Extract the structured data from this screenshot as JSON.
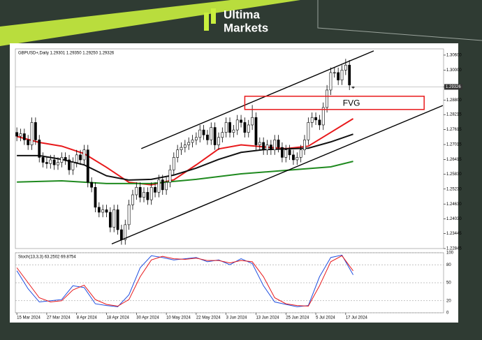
{
  "header": {
    "brand_line1": "Ultima",
    "brand_line2": "Markets"
  },
  "chart_data": {
    "type": "candlestick",
    "title": "GBPUSD+,Daily  1.29301 1.29350 1.29250 1.29326",
    "categories": [
      "15 Mar 2024",
      null,
      null,
      null,
      null,
      null,
      null,
      null,
      "27 Mar 2024",
      null,
      null,
      null,
      null,
      null,
      null,
      null,
      "8 Apr 2024",
      null,
      null,
      null,
      null,
      null,
      null,
      null,
      "18 Apr 2024",
      null,
      null,
      null,
      null,
      null,
      null,
      null,
      "30 Apr 2024",
      null,
      null,
      null,
      null,
      null,
      null,
      null,
      "10 May 2024",
      null,
      null,
      null,
      null,
      null,
      null,
      null,
      "22 May 2024",
      null,
      null,
      null,
      null,
      null,
      null,
      null,
      "3 Jun 2024",
      null,
      null,
      null,
      null,
      null,
      null,
      null,
      "13 Jun 2024",
      null,
      null,
      null,
      null,
      null,
      null,
      null,
      "25 Jun 2024",
      null,
      null,
      null,
      null,
      null,
      null,
      null,
      "5 Jul 2024",
      null,
      null,
      null,
      null,
      null,
      null,
      null,
      "17 Jul 2024",
      null,
      null
    ],
    "xlim": [
      -0.4,
      114.2
    ],
    "ylim": [
      1.22845,
      1.3085
    ],
    "yticks": [
      {
        "value": 1.306,
        "label": "1.30600"
      },
      {
        "value": 1.3,
        "label": "1.30000"
      },
      {
        "value": 1.29326,
        "label": "1.29326"
      },
      {
        "value": 1.288,
        "label": "1.28800"
      },
      {
        "value": 1.28215,
        "label": "1.28215"
      },
      {
        "value": 1.27615,
        "label": "1.27615"
      },
      {
        "value": 1.27015,
        "label": "1.27015"
      },
      {
        "value": 1.26415,
        "label": "1.26415"
      },
      {
        "value": 1.2583,
        "label": "1.25830"
      },
      {
        "value": 1.2523,
        "label": "1.25230"
      },
      {
        "value": 1.2463,
        "label": "1.24630"
      },
      {
        "value": 1.2403,
        "label": "1.24030"
      },
      {
        "value": 1.23445,
        "label": "1.23445"
      },
      {
        "value": 1.22845,
        "label": "1.22845"
      }
    ],
    "candles": {
      "up_color": "#ffffff",
      "down_color": "#000000",
      "open": [
        1.275,
        1.2735,
        1.2745,
        1.272,
        1.27,
        1.279,
        1.272,
        1.265,
        1.263,
        1.2625,
        1.264,
        1.262,
        1.263,
        1.265,
        1.264,
        1.26,
        1.263,
        1.266,
        1.264,
        1.268,
        1.255,
        1.253,
        1.245,
        1.243,
        1.244,
        1.243,
        1.237,
        1.244,
        1.236,
        1.232,
        1.238,
        1.246,
        1.25,
        1.253,
        1.249,
        1.251,
        1.248,
        1.253,
        1.251,
        1.256,
        1.252,
        1.255,
        1.26,
        1.265,
        1.268,
        1.269,
        1.27,
        1.271,
        1.272,
        1.273,
        1.276,
        1.274,
        1.272,
        1.277,
        1.27,
        1.273,
        1.275,
        1.279,
        1.275,
        1.276,
        1.28,
        1.279,
        1.275,
        1.278,
        1.281,
        1.27,
        1.271,
        1.268,
        1.27,
        1.268,
        1.272,
        1.269,
        1.265,
        1.268,
        1.266,
        1.264,
        1.265,
        1.268,
        1.272,
        1.279,
        1.281,
        1.28,
        1.278,
        1.285,
        1.292,
        1.299,
        1.299,
        1.296,
        1.3,
        1.302,
        1.29301
      ],
      "high": [
        1.277,
        1.2765,
        1.2765,
        1.274,
        1.281,
        1.281,
        1.274,
        1.267,
        1.265,
        1.266,
        1.266,
        1.265,
        1.267,
        1.267,
        1.266,
        1.265,
        1.268,
        1.268,
        1.27,
        1.27,
        1.257,
        1.255,
        1.247,
        1.246,
        1.246,
        1.245,
        1.246,
        1.246,
        1.238,
        1.24,
        1.248,
        1.252,
        1.255,
        1.255,
        1.253,
        1.253,
        1.255,
        1.255,
        1.258,
        1.258,
        1.257,
        1.262,
        1.267,
        1.27,
        1.271,
        1.272,
        1.273,
        1.274,
        1.275,
        1.278,
        1.278,
        1.276,
        1.279,
        1.279,
        1.275,
        1.277,
        1.281,
        1.281,
        1.278,
        1.282,
        1.282,
        1.281,
        1.28,
        1.286,
        1.283,
        1.273,
        1.273,
        1.272,
        1.272,
        1.274,
        1.274,
        1.271,
        1.27,
        1.27,
        1.268,
        1.267,
        1.27,
        1.274,
        1.281,
        1.283,
        1.283,
        1.282,
        1.287,
        1.294,
        1.301,
        1.301,
        1.301,
        1.302,
        1.3045,
        1.304,
        1.2935
      ],
      "low": [
        1.2715,
        1.2715,
        1.27,
        1.268,
        1.268,
        1.27,
        1.263,
        1.261,
        1.2605,
        1.2605,
        1.26,
        1.26,
        1.261,
        1.262,
        1.258,
        1.258,
        1.261,
        1.262,
        1.262,
        1.253,
        1.251,
        1.243,
        1.241,
        1.241,
        1.241,
        1.235,
        1.235,
        1.234,
        1.23,
        1.23,
        1.236,
        1.244,
        1.248,
        1.247,
        1.247,
        1.246,
        1.246,
        1.249,
        1.249,
        1.25,
        1.25,
        1.253,
        1.258,
        1.263,
        1.266,
        1.267,
        1.268,
        1.269,
        1.27,
        1.271,
        1.272,
        1.27,
        1.27,
        1.268,
        1.268,
        1.271,
        1.273,
        1.273,
        1.273,
        1.274,
        1.277,
        1.273,
        1.273,
        1.276,
        1.268,
        1.268,
        1.266,
        1.266,
        1.266,
        1.266,
        1.267,
        1.263,
        1.263,
        1.264,
        1.262,
        1.262,
        1.263,
        1.266,
        1.27,
        1.277,
        1.278,
        1.276,
        1.276,
        1.283,
        1.29,
        1.297,
        1.294,
        1.294,
        1.298,
        1.292,
        1.2925
      ],
      "close": [
        1.2735,
        1.2745,
        1.272,
        1.27,
        1.279,
        1.272,
        1.265,
        1.263,
        1.2625,
        1.264,
        1.262,
        1.263,
        1.265,
        1.264,
        1.26,
        1.263,
        1.266,
        1.264,
        1.268,
        1.255,
        1.253,
        1.245,
        1.243,
        1.244,
        1.243,
        1.237,
        1.244,
        1.236,
        1.232,
        1.238,
        1.246,
        1.25,
        1.253,
        1.249,
        1.251,
        1.248,
        1.253,
        1.251,
        1.256,
        1.252,
        1.255,
        1.26,
        1.265,
        1.268,
        1.269,
        1.27,
        1.271,
        1.272,
        1.273,
        1.276,
        1.274,
        1.272,
        1.277,
        1.27,
        1.273,
        1.275,
        1.279,
        1.275,
        1.276,
        1.28,
        1.279,
        1.275,
        1.278,
        1.281,
        1.27,
        1.271,
        1.268,
        1.27,
        1.268,
        1.272,
        1.269,
        1.265,
        1.268,
        1.266,
        1.264,
        1.265,
        1.268,
        1.272,
        1.279,
        1.281,
        1.28,
        1.278,
        1.285,
        1.292,
        1.299,
        1.299,
        1.296,
        1.3,
        1.302,
        1.294,
        1.29326
      ]
    },
    "series": [
      {
        "color": "#e8191b",
        "x": [
          0,
          6,
          12,
          18,
          24,
          30,
          36,
          42,
          48,
          54,
          60,
          66,
          72,
          78,
          84,
          90
        ],
        "values": [
          1.2734,
          1.271,
          1.2695,
          1.2665,
          1.261,
          1.255,
          1.254,
          1.256,
          1.262,
          1.2684,
          1.27,
          1.2692,
          1.2685,
          1.2695,
          1.275,
          1.2805
        ]
      },
      {
        "color": "#111111",
        "x": [
          0,
          6,
          12,
          18,
          24,
          30,
          36,
          42,
          48,
          54,
          60,
          66,
          72,
          78,
          84,
          90
        ],
        "values": [
          1.2657,
          1.2657,
          1.2642,
          1.262,
          1.2576,
          1.2559,
          1.2562,
          1.2579,
          1.2607,
          1.2642,
          1.267,
          1.2681,
          1.2684,
          1.2687,
          1.2712,
          1.2743
        ]
      },
      {
        "color": "#1f8a1f",
        "x": [
          0,
          12,
          24,
          36,
          48,
          60,
          72,
          84,
          90
        ],
        "values": [
          1.2551,
          1.2556,
          1.2545,
          1.2545,
          1.2562,
          1.2584,
          1.2598,
          1.2612,
          1.2634
        ]
      }
    ],
    "annotations": {
      "trendlines": [
        {
          "x": [
            33.3,
            95.5
          ],
          "values": [
            1.2685,
            1.3077
          ]
        },
        {
          "x": [
            25.4,
            114
          ],
          "values": [
            1.2303,
            1.2858
          ]
        }
      ],
      "fvg": {
        "label": "FVG",
        "color": "#e8191b",
        "x": [
          61,
          109
        ],
        "values": [
          1.2895,
          1.2842
        ]
      }
    },
    "stochastic": {
      "label": "Stoch(13,3,3) 63.2502 69.8754",
      "ylim": [
        0,
        100
      ],
      "yticks": [
        0,
        20,
        50,
        80,
        100
      ],
      "series": [
        {
          "color": "#1f4fe0",
          "x": [
            0,
            3,
            6,
            9,
            12,
            15,
            18,
            21,
            24,
            27,
            30,
            33,
            36,
            39,
            42,
            45,
            48,
            51,
            54,
            57,
            60,
            63,
            66,
            69,
            72,
            75,
            78,
            81,
            84,
            87,
            90
          ],
          "values": [
            70,
            40,
            18,
            20,
            22,
            45,
            42,
            15,
            12,
            10,
            30,
            75,
            95,
            92,
            88,
            90,
            92,
            85,
            88,
            80,
            90,
            82,
            45,
            18,
            14,
            10,
            12,
            60,
            92,
            96,
            63.2502
          ]
        },
        {
          "color": "#e8191b",
          "x": [
            0,
            3,
            6,
            9,
            12,
            15,
            18,
            21,
            24,
            27,
            30,
            33,
            36,
            39,
            42,
            45,
            48,
            51,
            54,
            57,
            60,
            63,
            66,
            69,
            72,
            75,
            78,
            81,
            84,
            87,
            90
          ],
          "values": [
            75,
            50,
            25,
            18,
            20,
            38,
            46,
            22,
            14,
            11,
            22,
            60,
            88,
            94,
            90,
            89,
            91,
            87,
            87,
            83,
            87,
            85,
            60,
            25,
            15,
            12,
            11,
            45,
            85,
            95,
            69.8754
          ]
        }
      ]
    }
  }
}
